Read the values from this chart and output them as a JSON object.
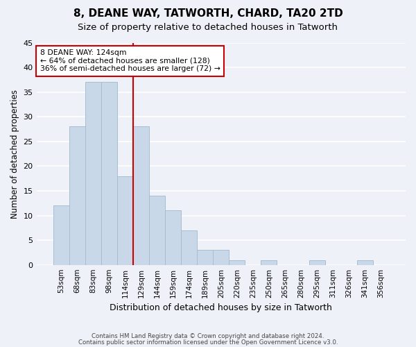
{
  "title": "8, DEANE WAY, TATWORTH, CHARD, TA20 2TD",
  "subtitle": "Size of property relative to detached houses in Tatworth",
  "xlabel": "Distribution of detached houses by size in Tatworth",
  "ylabel": "Number of detached properties",
  "bar_color": "#c8d8e8",
  "bar_edgecolor": "#a8bece",
  "background_color": "#eef2f8",
  "grid_color": "#ffffff",
  "bins": [
    "53sqm",
    "68sqm",
    "83sqm",
    "98sqm",
    "114sqm",
    "129sqm",
    "144sqm",
    "159sqm",
    "174sqm",
    "189sqm",
    "205sqm",
    "220sqm",
    "235sqm",
    "250sqm",
    "265sqm",
    "280sqm",
    "295sqm",
    "311sqm",
    "326sqm",
    "341sqm",
    "356sqm"
  ],
  "values": [
    12,
    28,
    37,
    37,
    18,
    28,
    14,
    11,
    7,
    3,
    3,
    1,
    0,
    1,
    0,
    0,
    1,
    0,
    0,
    1,
    0
  ],
  "ylim": [
    0,
    45
  ],
  "yticks": [
    0,
    5,
    10,
    15,
    20,
    25,
    30,
    35,
    40,
    45
  ],
  "vline_pos": 4.5,
  "vline_color": "#cc0000",
  "annotation_text": "8 DEANE WAY: 124sqm\n← 64% of detached houses are smaller (128)\n36% of semi-detached houses are larger (72) →",
  "annotation_box_facecolor": "#ffffff",
  "annotation_box_edgecolor": "#cc0000",
  "footer1": "Contains HM Land Registry data © Crown copyright and database right 2024.",
  "footer2": "Contains public sector information licensed under the Open Government Licence v3.0."
}
